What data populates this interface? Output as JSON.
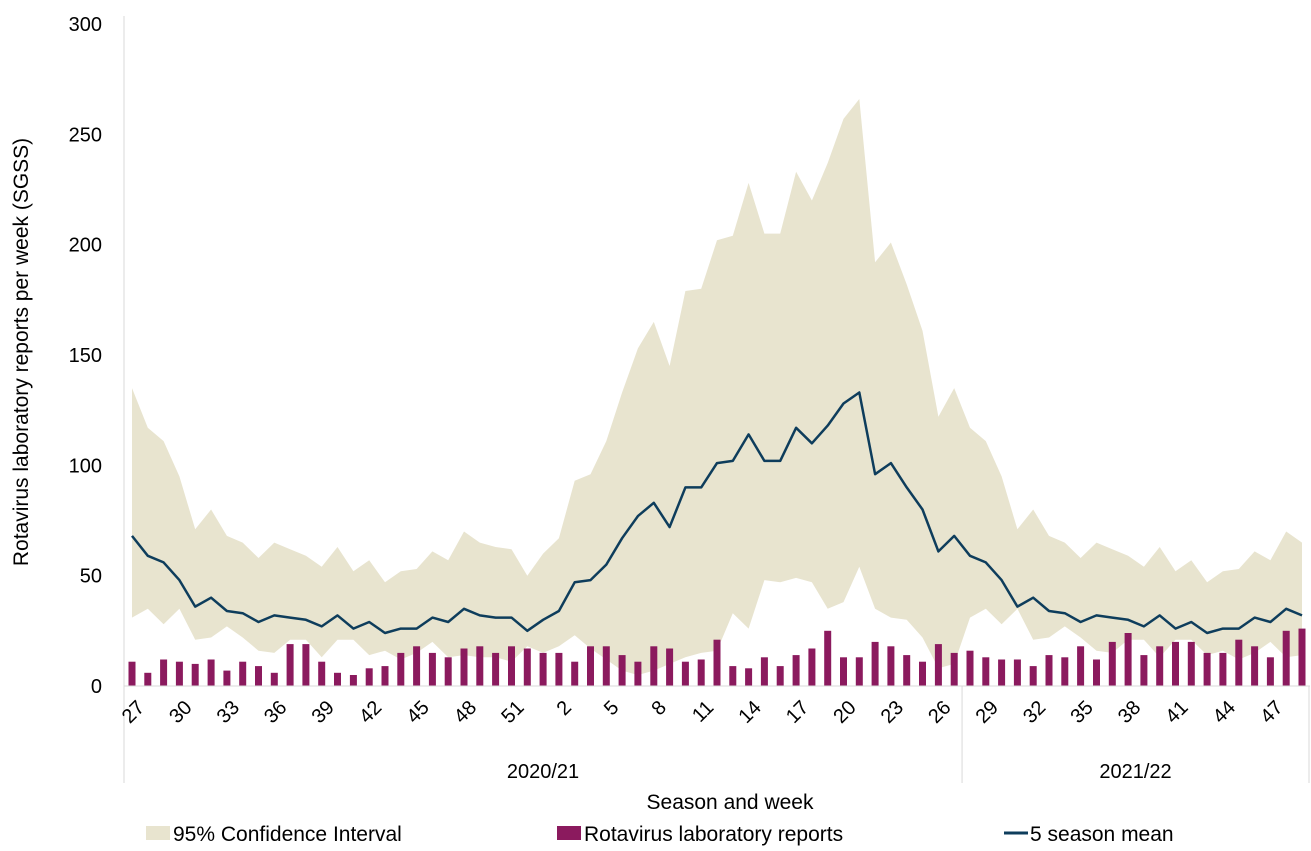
{
  "chart_data": {
    "type": "bar",
    "xlabel": "Season and week",
    "ylabel": "Rotavirus laboratory reports per week (SGSS)",
    "ylim": [
      0,
      300
    ],
    "yticks": [
      "0",
      "50",
      "100",
      "150",
      "200",
      "250",
      "300"
    ],
    "grid": false,
    "legend_placement": "bottom",
    "weeks": [
      27,
      28,
      29,
      30,
      31,
      32,
      33,
      34,
      35,
      36,
      37,
      38,
      39,
      40,
      41,
      42,
      43,
      44,
      45,
      46,
      47,
      48,
      49,
      50,
      51,
      52,
      53,
      1,
      2,
      3,
      4,
      5,
      6,
      7,
      8,
      9,
      10,
      11,
      12,
      13,
      14,
      15,
      16,
      17,
      18,
      19,
      20,
      21,
      22,
      23,
      24,
      25,
      26,
      27,
      28,
      29,
      30,
      31,
      32,
      33,
      34,
      35,
      36,
      37,
      38,
      39,
      40,
      41,
      42,
      43,
      44,
      45,
      46,
      47,
      48
    ],
    "xtick_labels": [
      "27",
      "30",
      "33",
      "36",
      "39",
      "42",
      "45",
      "48",
      "51",
      "2",
      "5",
      "8",
      "11",
      "14",
      "17",
      "20",
      "23",
      "26",
      "29",
      "32",
      "35",
      "38",
      "41",
      "44",
      "47"
    ],
    "seasons": [
      {
        "label": "2020/21",
        "start_index": 0,
        "end_index": 52
      },
      {
        "label": "2021/22",
        "start_index": 53,
        "end_index": 74
      }
    ],
    "series": [
      {
        "name": "95% Confidence Interval",
        "kind": "band",
        "color": "#e8e4cf",
        "lower": [
          31,
          35,
          28,
          35,
          21,
          22,
          27,
          22,
          16,
          15,
          21,
          21,
          13,
          21,
          21,
          14,
          16,
          12,
          15,
          20,
          13,
          14,
          13,
          13,
          11,
          18,
          15,
          18,
          23,
          17,
          12,
          7,
          5,
          7,
          10,
          13,
          15,
          16,
          33,
          26,
          48,
          47,
          49,
          47,
          35,
          38,
          54,
          35,
          31,
          30,
          22,
          8,
          10,
          31,
          35,
          28,
          35,
          21,
          22,
          27,
          22,
          16,
          15,
          21,
          21,
          13,
          21,
          21,
          14,
          16,
          12,
          15,
          20,
          13,
          14
        ],
        "upper": [
          135,
          117,
          111,
          95,
          71,
          80,
          68,
          65,
          58,
          65,
          62,
          59,
          54,
          63,
          52,
          57,
          47,
          52,
          53,
          61,
          57,
          70,
          65,
          63,
          62,
          50,
          60,
          67,
          93,
          96,
          111,
          133,
          153,
          165,
          145,
          179,
          180,
          202,
          204,
          228,
          205,
          205,
          233,
          220,
          237,
          257,
          266,
          192,
          201,
          182,
          161,
          122,
          135,
          117,
          111,
          95,
          71,
          80,
          68,
          65,
          58,
          65,
          62,
          59,
          54,
          63,
          52,
          57,
          47,
          52,
          53,
          61,
          57,
          70,
          65
        ]
      },
      {
        "name": "Rotavirus laboratory reports",
        "kind": "bar",
        "color": "#8b1a5e",
        "values": [
          11,
          6,
          12,
          11,
          10,
          12,
          7,
          11,
          9,
          6,
          19,
          19,
          11,
          6,
          5,
          8,
          9,
          15,
          18,
          15,
          13,
          17,
          18,
          15,
          18,
          17,
          15,
          15,
          11,
          18,
          18,
          14,
          11,
          18,
          17,
          11,
          12,
          21,
          9,
          8,
          13,
          9,
          14,
          17,
          25,
          13,
          13,
          20,
          18,
          14,
          11,
          19,
          15,
          16,
          13,
          12,
          12,
          9,
          14,
          13,
          18,
          12,
          20,
          24,
          14,
          18,
          20,
          20,
          15,
          15,
          21,
          18,
          13,
          25,
          26
        ]
      },
      {
        "name": "5 season mean",
        "kind": "line",
        "color": "#0e3d5c",
        "values": [
          68,
          59,
          56,
          48,
          36,
          40,
          34,
          33,
          29,
          32,
          31,
          30,
          27,
          32,
          26,
          29,
          24,
          26,
          26,
          31,
          29,
          35,
          32,
          31,
          31,
          25,
          30,
          34,
          47,
          48,
          55,
          67,
          77,
          83,
          72,
          90,
          90,
          101,
          102,
          114,
          102,
          102,
          117,
          110,
          118,
          128,
          133,
          96,
          101,
          90,
          80,
          61,
          68,
          59,
          56,
          48,
          36,
          40,
          34,
          33,
          29,
          32,
          31,
          30,
          27,
          32,
          26,
          29,
          24,
          26,
          26,
          31,
          29,
          35,
          32
        ]
      }
    ]
  }
}
